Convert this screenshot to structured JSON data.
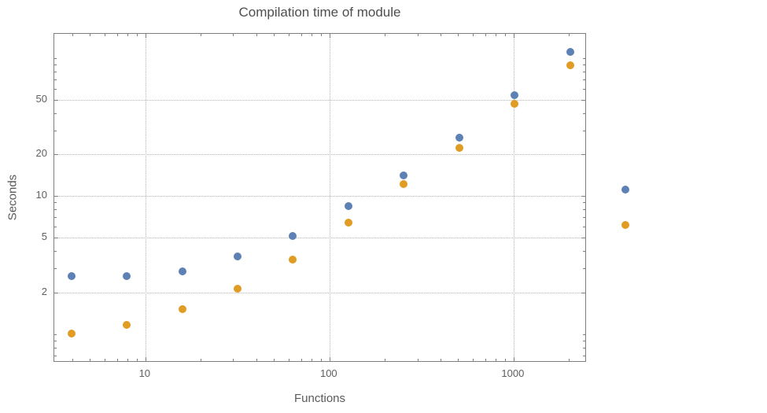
{
  "chart_data": {
    "type": "scatter",
    "title": "Compilation time of module",
    "xlabel": "Functions",
    "ylabel": "Seconds",
    "xscale": "log",
    "yscale": "log",
    "xlim": [
      3.2,
      2500
    ],
    "ylim": [
      0.62,
      150
    ],
    "grid": "dotted",
    "legend": "none",
    "x_ticks": [
      {
        "value": 10,
        "label": "10"
      },
      {
        "value": 100,
        "label": "100"
      },
      {
        "value": 1000,
        "label": "1000"
      }
    ],
    "y_ticks": [
      {
        "value": 2,
        "label": "2"
      },
      {
        "value": 5,
        "label": "5"
      },
      {
        "value": 10,
        "label": "10"
      },
      {
        "value": 20,
        "label": "20"
      },
      {
        "value": 50,
        "label": "50"
      }
    ],
    "x": [
      4,
      8,
      16,
      32,
      64,
      128,
      256,
      512,
      1024,
      2048,
      4096
    ],
    "series": [
      {
        "name": "series-blue",
        "color": "#5e81b5",
        "values": [
          2.6,
          2.6,
          2.8,
          3.6,
          5.1,
          8.3,
          14,
          26,
          53,
          110,
          11
        ]
      },
      {
        "name": "series-orange",
        "color": "#e19c24",
        "values": [
          1.0,
          1.15,
          1.5,
          2.1,
          3.4,
          6.3,
          12,
          22,
          46,
          88,
          6.1
        ]
      }
    ],
    "colors": {
      "blue": "#5e81b5",
      "orange": "#e19c24"
    }
  }
}
